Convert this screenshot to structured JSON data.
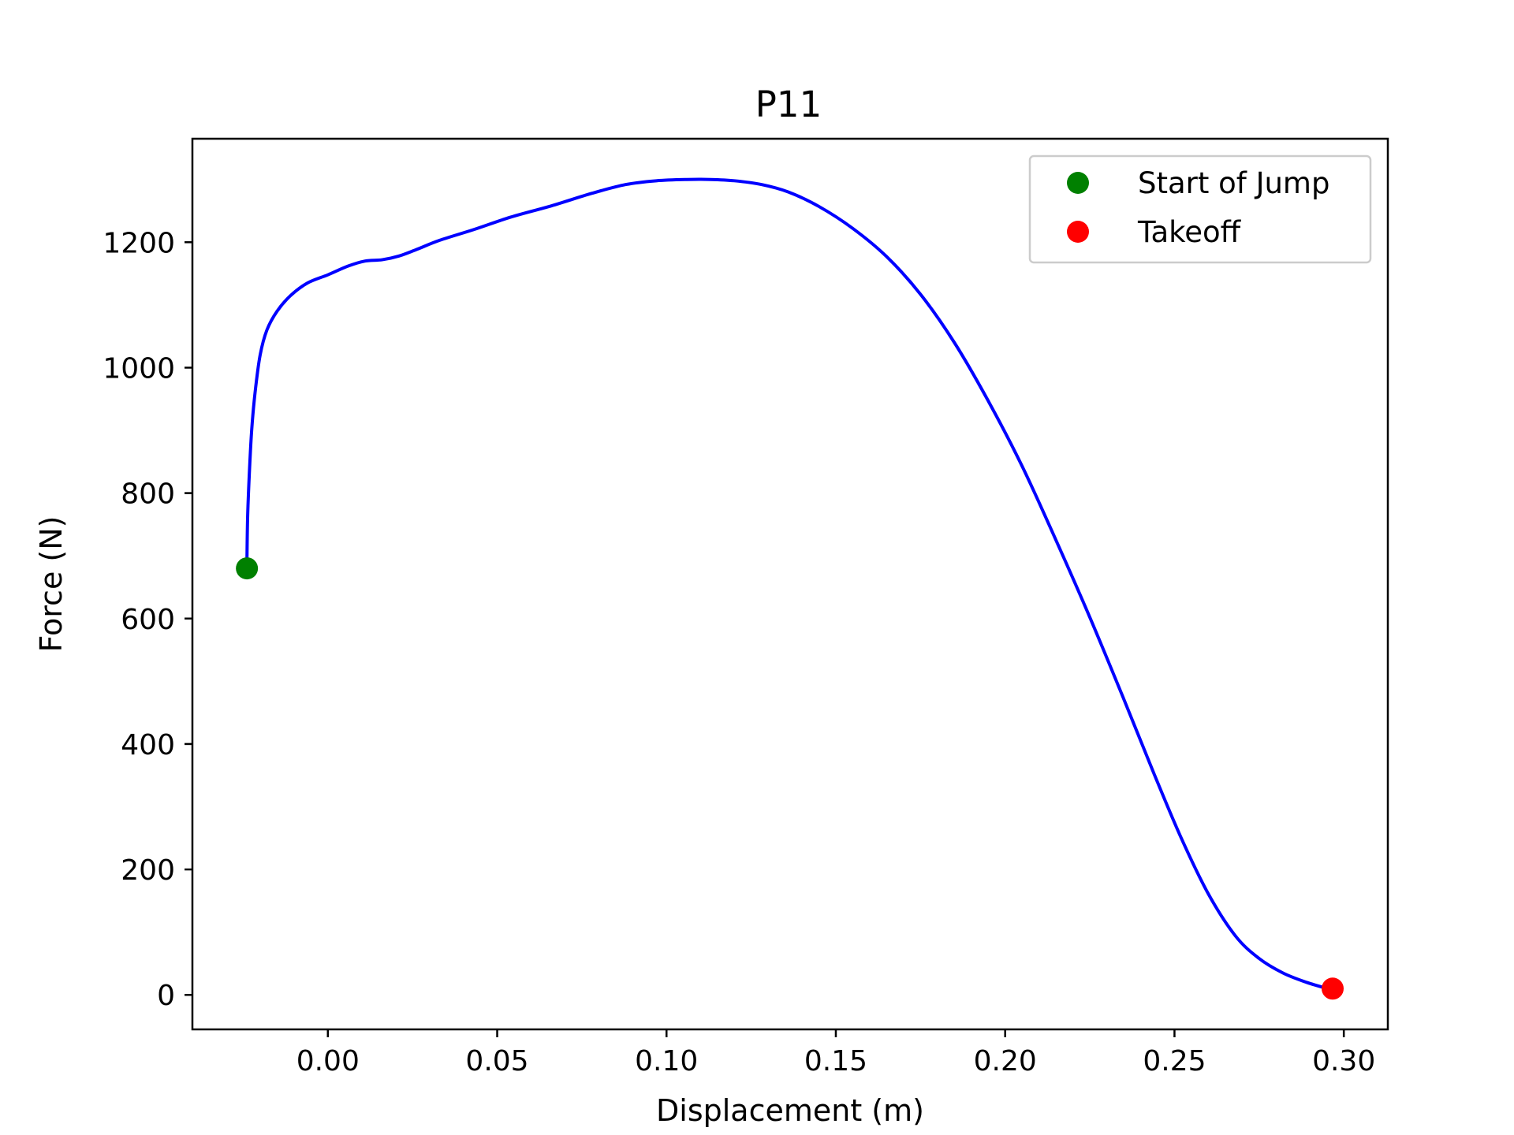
{
  "chart_data": {
    "type": "line",
    "title": "P11",
    "xlabel": "Displacement (m)",
    "ylabel": "Force (N)",
    "xlim": [
      -0.04,
      0.313
    ],
    "ylim": [
      -55,
      1365
    ],
    "xticks": [
      0.0,
      0.05,
      0.1,
      0.15,
      0.2,
      0.25,
      0.3
    ],
    "xtick_labels": [
      "0.00",
      "0.05",
      "0.10",
      "0.15",
      "0.20",
      "0.25",
      "0.30"
    ],
    "yticks": [
      0,
      200,
      400,
      600,
      800,
      1000,
      1200
    ],
    "ytick_labels": [
      "0",
      "200",
      "400",
      "600",
      "800",
      "1000",
      "1200"
    ],
    "grid": false,
    "legend_position": "top-right",
    "series": [
      {
        "color": "#0000ff",
        "x": [
          -0.0239,
          -0.0237,
          -0.0232,
          -0.0225,
          -0.0215,
          -0.02,
          -0.018,
          -0.015,
          -0.011,
          -0.006,
          0.0,
          0.006,
          0.011,
          0.016,
          0.021,
          0.026,
          0.033,
          0.043,
          0.054,
          0.066,
          0.078,
          0.088,
          0.097,
          0.106,
          0.113,
          0.12,
          0.128,
          0.136,
          0.145,
          0.155,
          0.165,
          0.175,
          0.185,
          0.195,
          0.205,
          0.215,
          0.225,
          0.235,
          0.244,
          0.252,
          0.26,
          0.268,
          0.275,
          0.282,
          0.289,
          0.2965
        ],
        "y": [
          690,
          760,
          830,
          900,
          960,
          1020,
          1060,
          1090,
          1115,
          1135,
          1148,
          1162,
          1170,
          1172,
          1178,
          1188,
          1203,
          1220,
          1240,
          1258,
          1278,
          1292,
          1298,
          1300,
          1300,
          1298,
          1292,
          1280,
          1257,
          1222,
          1177,
          1117,
          1040,
          947,
          843,
          725,
          602,
          472,
          352,
          250,
          161,
          94,
          58,
          35,
          20,
          8
        ]
      }
    ],
    "markers": [
      {
        "name": "Start of Jump",
        "color": "#008000",
        "x": -0.0239,
        "y": 680
      },
      {
        "name": "Takeoff",
        "color": "#ff0000",
        "x": 0.2967,
        "y": 10
      }
    ]
  }
}
